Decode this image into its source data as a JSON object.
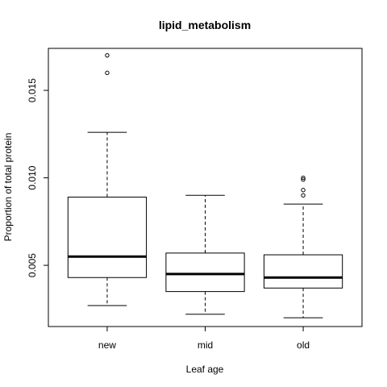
{
  "chart_data": {
    "type": "boxplot",
    "title": "lipid_metabolism",
    "xlabel": "Leaf age",
    "ylabel": "Proportion of total protein",
    "ylim": [
      0.0015,
      0.0174
    ],
    "yticks": [
      0.005,
      0.01,
      0.015
    ],
    "ytick_labels": [
      "0.005",
      "0.010",
      "0.015"
    ],
    "categories": [
      "new",
      "mid",
      "old"
    ],
    "grid": false,
    "boxes": [
      {
        "category": "new",
        "whisker_low": 0.0027,
        "q1": 0.0043,
        "median": 0.0055,
        "q3": 0.0089,
        "whisker_high": 0.0126,
        "outliers": [
          0.016,
          0.017
        ]
      },
      {
        "category": "mid",
        "whisker_low": 0.0022,
        "q1": 0.0035,
        "median": 0.0045,
        "q3": 0.0057,
        "whisker_high": 0.009,
        "outliers": []
      },
      {
        "category": "old",
        "whisker_low": 0.002,
        "q1": 0.0037,
        "median": 0.0043,
        "q3": 0.0056,
        "whisker_high": 0.0085,
        "outliers": [
          0.009,
          0.0093,
          0.0099,
          0.01
        ]
      }
    ]
  }
}
